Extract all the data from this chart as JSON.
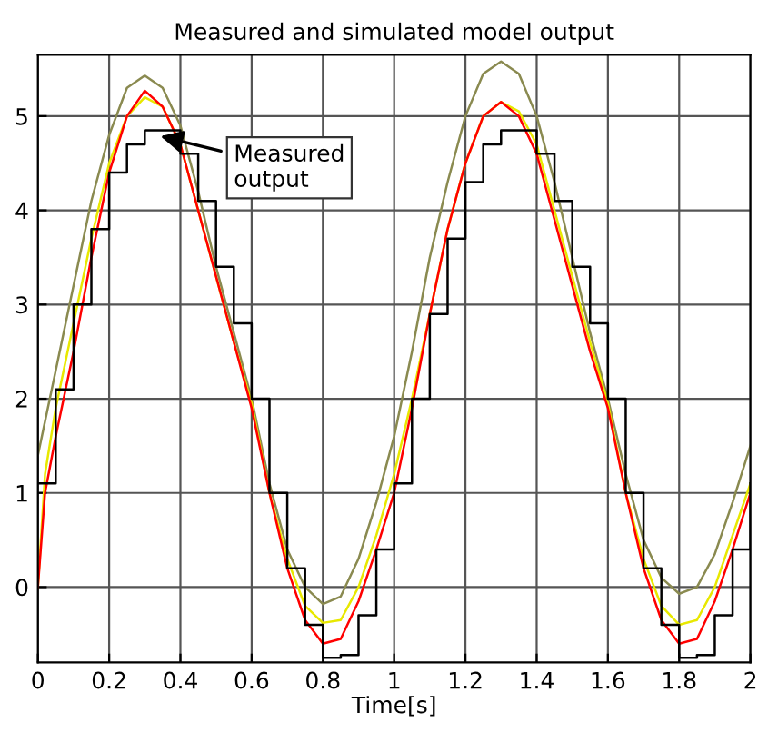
{
  "chart_data": {
    "type": "line",
    "title": "Measured and simulated model output",
    "xlabel": "Time[s]",
    "x": [
      0,
      0.05,
      0.1,
      0.15,
      0.2,
      0.25,
      0.3,
      0.35,
      0.4,
      0.45,
      0.5,
      0.55,
      0.6,
      0.65,
      0.7,
      0.75,
      0.8,
      0.85,
      0.9,
      0.95,
      1.0,
      1.05,
      1.1,
      1.15,
      1.2,
      1.25,
      1.3,
      1.35,
      1.4,
      1.45,
      1.5,
      1.55,
      1.6,
      1.65,
      1.7,
      1.75,
      1.8,
      1.85,
      1.9,
      1.95,
      2.0
    ],
    "series": [
      {
        "color": "#8a8a50",
        "values": [
          1.4,
          2.3,
          3.2,
          4.1,
          4.8,
          5.3,
          5.43,
          5.3,
          4.9,
          4.2,
          3.4,
          2.7,
          2.0,
          1.1,
          0.4,
          0.0,
          -0.18,
          -0.1,
          0.3,
          0.9,
          1.6,
          2.5,
          3.5,
          4.3,
          5.0,
          5.45,
          5.58,
          5.45,
          5.0,
          4.3,
          3.5,
          2.7,
          2.0,
          1.2,
          0.5,
          0.1,
          -0.07,
          0.0,
          0.35,
          0.9,
          1.5
        ]
      },
      {
        "color": "#e8e800",
        "x": [
          0,
          0.02,
          0.05,
          0.1,
          0.15,
          0.2,
          0.25,
          0.3,
          0.35,
          0.4,
          0.45,
          0.5,
          0.55,
          0.6,
          0.65,
          0.7,
          0.75,
          0.8,
          0.85,
          0.9,
          0.95,
          1.0,
          1.05,
          1.1,
          1.15,
          1.2,
          1.25,
          1.3,
          1.35,
          1.4,
          1.45,
          1.5,
          1.55,
          1.6,
          1.65,
          1.7,
          1.75,
          1.8,
          1.85,
          1.9,
          1.95,
          2.0
        ],
        "values": [
          0,
          1.2,
          1.9,
          2.8,
          3.7,
          4.5,
          5.0,
          5.2,
          5.1,
          4.7,
          4.0,
          3.3,
          2.6,
          1.95,
          1.0,
          0.3,
          -0.2,
          -0.38,
          -0.35,
          0.0,
          0.55,
          1.2,
          2.0,
          2.9,
          3.8,
          4.5,
          5.0,
          5.15,
          5.05,
          4.7,
          4.0,
          3.3,
          2.6,
          1.95,
          1.0,
          0.3,
          -0.2,
          -0.4,
          -0.35,
          0.0,
          0.55,
          1.1
        ]
      },
      {
        "color": "#ff0000",
        "x": [
          0,
          0.02,
          0.05,
          0.1,
          0.15,
          0.2,
          0.25,
          0.3,
          0.35,
          0.4,
          0.45,
          0.5,
          0.55,
          0.6,
          0.65,
          0.7,
          0.75,
          0.8,
          0.85,
          0.9,
          0.95,
          1.0,
          1.05,
          1.1,
          1.15,
          1.2,
          1.25,
          1.3,
          1.35,
          1.4,
          1.45,
          1.5,
          1.55,
          1.6,
          1.65,
          1.7,
          1.75,
          1.8,
          1.85,
          1.9,
          1.95,
          2.0
        ],
        "values": [
          0,
          1.0,
          1.6,
          2.5,
          3.5,
          4.4,
          5.0,
          5.27,
          5.1,
          4.7,
          4.0,
          3.3,
          2.6,
          1.9,
          1.0,
          0.2,
          -0.35,
          -0.6,
          -0.55,
          -0.15,
          0.4,
          1.0,
          1.9,
          2.9,
          3.8,
          4.5,
          5.0,
          5.15,
          5.0,
          4.6,
          3.9,
          3.2,
          2.5,
          1.9,
          1.0,
          0.2,
          -0.35,
          -0.6,
          -0.55,
          -0.15,
          0.4,
          1.0
        ]
      },
      {
        "type": "step",
        "color": "#000000",
        "values": [
          1.1,
          2.1,
          3.0,
          3.8,
          4.4,
          4.7,
          4.85,
          4.85,
          4.6,
          4.1,
          3.4,
          2.8,
          2.0,
          1.0,
          0.2,
          -0.4,
          -0.75,
          -0.72,
          -0.3,
          0.4,
          1.1,
          2.0,
          2.9,
          3.7,
          4.3,
          4.7,
          4.85,
          4.85,
          4.6,
          4.1,
          3.4,
          2.8,
          2.0,
          1.0,
          0.2,
          -0.4,
          -0.75,
          -0.72,
          -0.3,
          0.4,
          1.1
        ]
      }
    ],
    "annotations": [
      {
        "text": "Measured\noutput",
        "x": 0.33,
        "y": 4.8
      }
    ],
    "xlim": [
      0,
      2
    ],
    "ylim": [
      -0.8,
      5.65
    ],
    "xticks": [
      0,
      0.2,
      0.4,
      0.6,
      0.8,
      1,
      1.2,
      1.4,
      1.6,
      1.8,
      2
    ],
    "yticks": [
      0,
      1,
      2,
      3,
      4,
      5
    ],
    "grid": true,
    "legend": false
  }
}
